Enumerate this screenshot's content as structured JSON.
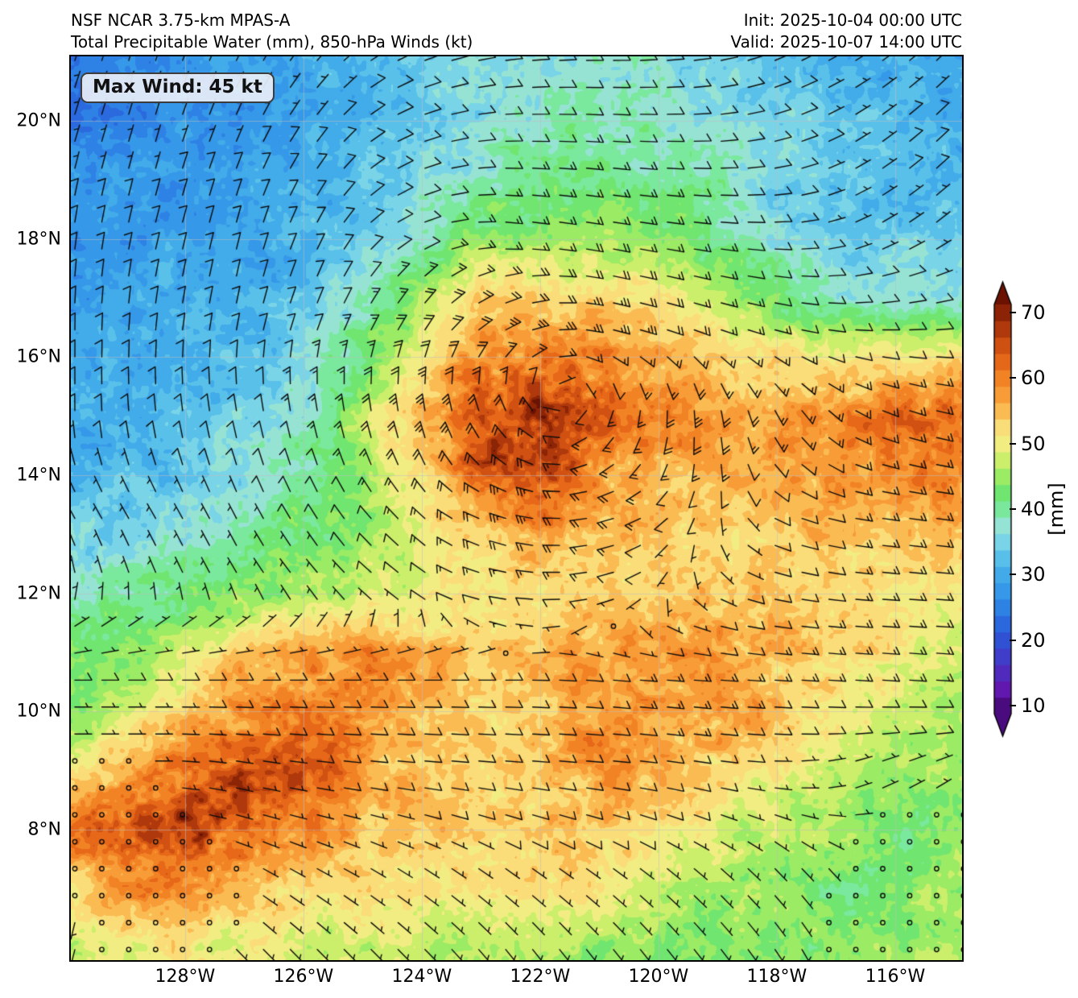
{
  "header": {
    "title_line1": "NSF NCAR 3.75-km MPAS-A",
    "title_line2": "Total Precipitable Water (mm), 850-hPa Winds (kt)",
    "init_label": "Init: 2025-10-04 00:00 UTC",
    "valid_label": "Valid: 2025-10-07 14:00 UTC"
  },
  "map": {
    "max_wind_label": "Max Wind: 45 kt"
  },
  "axes": {
    "x_ticks": [
      {
        "deg": -128,
        "label": "128°W"
      },
      {
        "deg": -126,
        "label": "126°W"
      },
      {
        "deg": -124,
        "label": "124°W"
      },
      {
        "deg": -122,
        "label": "122°W"
      },
      {
        "deg": -120,
        "label": "120°W"
      },
      {
        "deg": -118,
        "label": "118°W"
      },
      {
        "deg": -116,
        "label": "116°W"
      }
    ],
    "y_ticks": [
      {
        "deg": 8,
        "label": "8°N"
      },
      {
        "deg": 10,
        "label": "10°N"
      },
      {
        "deg": 12,
        "label": "12°N"
      },
      {
        "deg": 14,
        "label": "14°N"
      },
      {
        "deg": 16,
        "label": "16°N"
      },
      {
        "deg": 18,
        "label": "18°N"
      },
      {
        "deg": 20,
        "label": "20°N"
      }
    ]
  },
  "colorbar": {
    "label": "[mm]",
    "ticks": [
      10,
      20,
      30,
      40,
      50,
      60,
      70
    ],
    "vmin": 10,
    "vmax": 70,
    "levels_step": 2.5,
    "extend_under": "#4a0b7e",
    "extend_over": "#6b1203",
    "stops": [
      [
        10,
        "#6a10a8"
      ],
      [
        15,
        "#4633c4"
      ],
      [
        20,
        "#2a5cdb"
      ],
      [
        25,
        "#2f8fe8"
      ],
      [
        30,
        "#49b4e9"
      ],
      [
        33,
        "#6fd0ec"
      ],
      [
        36,
        "#97e2d9"
      ],
      [
        38,
        "#8ceab2"
      ],
      [
        40,
        "#5ce47a"
      ],
      [
        43,
        "#8dea63"
      ],
      [
        46,
        "#c6ee69"
      ],
      [
        48,
        "#eef07a"
      ],
      [
        50,
        "#f8e98e"
      ],
      [
        52,
        "#fbd66c"
      ],
      [
        55,
        "#faa841"
      ],
      [
        58,
        "#f48c2b"
      ],
      [
        60,
        "#ee741c"
      ],
      [
        62.5,
        "#dd5d15"
      ],
      [
        65,
        "#c2450f"
      ],
      [
        67.5,
        "#9c2d08"
      ],
      [
        70,
        "#7c1a04"
      ],
      [
        73,
        "#5f0c02"
      ]
    ]
  },
  "chart_data": {
    "type": "heatmap",
    "field": "total_precipitable_water_mm",
    "overlay": "850hPa_wind_barbs_kt",
    "lon_range": [
      -129.93,
      -114.87
    ],
    "lat_range": [
      5.79,
      21.09
    ],
    "grid_on": true,
    "tpw_grid": {
      "lons": [
        -130,
        -129,
        -128,
        -127,
        -126,
        -125,
        -124,
        -123,
        -122,
        -121,
        -120,
        -119,
        -118,
        -117,
        -116,
        -115
      ],
      "lats": [
        21,
        20,
        19,
        18,
        17,
        16,
        15,
        14,
        13,
        12,
        11,
        10,
        9,
        8,
        7,
        6
      ],
      "values": [
        [
          24,
          25,
          26,
          27,
          28,
          30,
          33,
          35,
          36,
          37,
          36,
          34,
          32,
          30,
          29,
          28
        ],
        [
          23,
          24,
          26,
          27,
          28,
          30,
          33,
          36,
          38,
          39,
          38,
          36,
          33,
          31,
          30,
          29
        ],
        [
          25,
          26,
          27,
          28,
          29,
          31,
          34,
          38,
          40,
          40,
          39,
          37,
          34,
          32,
          31,
          30
        ],
        [
          26,
          27,
          28,
          29,
          30,
          33,
          38,
          43,
          45,
          44,
          42,
          39,
          36,
          33,
          32,
          34
        ],
        [
          27,
          28,
          29,
          30,
          32,
          37,
          45,
          51,
          53,
          52,
          49,
          45,
          41,
          37,
          35,
          36
        ],
        [
          28,
          29,
          30,
          31,
          34,
          41,
          50,
          58,
          62,
          58,
          55,
          53,
          50,
          49,
          50,
          52
        ],
        [
          29,
          30,
          31,
          33,
          38,
          46,
          55,
          67,
          70,
          61,
          57,
          56,
          55,
          56,
          58,
          61
        ],
        [
          30,
          31,
          32,
          35,
          40,
          44,
          52,
          61,
          65,
          57,
          55,
          54,
          54,
          55,
          56,
          57
        ],
        [
          33,
          34,
          36,
          38,
          41,
          43,
          47,
          52,
          55,
          53,
          52,
          52,
          52,
          53,
          53,
          53
        ],
        [
          36,
          38,
          40,
          42,
          44,
          46,
          48,
          50,
          51,
          52,
          52,
          53,
          52,
          51,
          50,
          49
        ],
        [
          40,
          43,
          48,
          53,
          56,
          57,
          55,
          53,
          54,
          56,
          57,
          58,
          55,
          52,
          50,
          47
        ],
        [
          42,
          46,
          52,
          58,
          60,
          58,
          55,
          52,
          53,
          56,
          57,
          56,
          53,
          50,
          47,
          45
        ],
        [
          50,
          56,
          62,
          64,
          60,
          56,
          53,
          52,
          54,
          57,
          55,
          52,
          49,
          46,
          44,
          43
        ],
        [
          58,
          64,
          67,
          62,
          57,
          54,
          52,
          51,
          53,
          54,
          51,
          47,
          45,
          43,
          42,
          42
        ],
        [
          52,
          57,
          58,
          55,
          52,
          51,
          50,
          50,
          51,
          49,
          46,
          44,
          43,
          42,
          42,
          43
        ],
        [
          46,
          49,
          50,
          49,
          48,
          47,
          46,
          46,
          45,
          44,
          43,
          42,
          42,
          43,
          44,
          45
        ]
      ]
    },
    "wind_850hPa_kt": {
      "lons": [
        -130,
        -128.5,
        -127,
        -125.5,
        -124,
        -122.5,
        -121,
        -119.5,
        -118,
        -116.5,
        -115
      ],
      "lats": [
        21,
        19.5,
        18,
        16.5,
        15,
        13.5,
        12,
        10.5,
        9,
        7.5,
        6
      ],
      "u": [
        [
          -2,
          -2,
          -3,
          -5,
          -8,
          -10,
          -10,
          -9,
          -7,
          -6,
          -5
        ],
        [
          -2,
          -2,
          -3,
          -5,
          -9,
          -12,
          -13,
          -11,
          -8,
          -6,
          -6
        ],
        [
          -1,
          -2,
          -2,
          -4,
          -10,
          -15,
          -17,
          -14,
          -9,
          -6,
          -5
        ],
        [
          0,
          -1,
          -2,
          -5,
          -12,
          -22,
          -26,
          -18,
          -13,
          -10,
          -9
        ],
        [
          0,
          1,
          2,
          3,
          5,
          10,
          8,
          0,
          -8,
          -13,
          -15
        ],
        [
          3,
          3,
          3,
          5,
          12,
          25,
          22,
          5,
          -8,
          -13,
          -14
        ],
        [
          0,
          1,
          2,
          4,
          8,
          14,
          10,
          -2,
          -10,
          -13,
          -14
        ],
        [
          -8,
          -9,
          -10,
          -11,
          -12,
          -10,
          -12,
          -14,
          -15,
          -15,
          -15
        ],
        [
          -1,
          -2,
          -5,
          -8,
          -10,
          -11,
          -12,
          -12,
          -6,
          -4,
          -3
        ],
        [
          0,
          -1,
          -2,
          -4,
          -5,
          -6,
          -6,
          -5,
          -3,
          -1,
          0
        ],
        [
          1,
          0,
          -2,
          -3,
          -4,
          -4,
          -4,
          -4,
          -2,
          0,
          0
        ]
      ],
      "v": [
        [
          -6,
          -6,
          -6,
          -5,
          -3,
          -1,
          0,
          -1,
          -3,
          -4,
          -5
        ],
        [
          -7,
          -7,
          -7,
          -6,
          -3,
          0,
          1,
          0,
          -2,
          -4,
          -6
        ],
        [
          -8,
          -8,
          -8,
          -7,
          -4,
          2,
          3,
          2,
          0,
          -3,
          -4
        ],
        [
          -8,
          -9,
          -10,
          -12,
          -18,
          -10,
          6,
          6,
          3,
          0,
          -1
        ],
        [
          -8,
          -9,
          -11,
          -16,
          -28,
          -18,
          12,
          25,
          15,
          6,
          3
        ],
        [
          -5,
          -5,
          -6,
          -8,
          -12,
          -8,
          5,
          8,
          4,
          2,
          2
        ],
        [
          -3,
          -3,
          -3,
          -4,
          -5,
          -2,
          2,
          3,
          2,
          1,
          1
        ],
        [
          0,
          0,
          0,
          0,
          0,
          0,
          1,
          1,
          1,
          1,
          1
        ],
        [
          0,
          0,
          1,
          1,
          1,
          1,
          1,
          2,
          0,
          -2,
          -2
        ],
        [
          0,
          0,
          1,
          2,
          3,
          4,
          4,
          4,
          3,
          1,
          0
        ],
        [
          4,
          0,
          2,
          3,
          4,
          5,
          5,
          5,
          3,
          1,
          0
        ]
      ]
    }
  }
}
